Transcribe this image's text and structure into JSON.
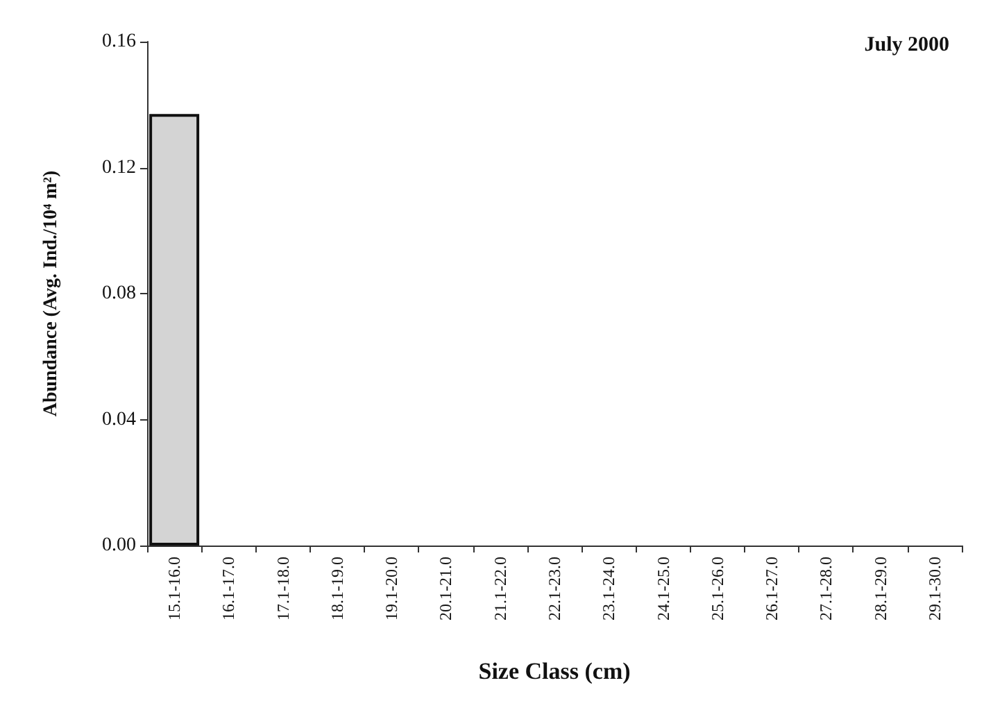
{
  "chart_data": {
    "type": "bar",
    "title": "July 2000",
    "xlabel": "Size Class (cm)",
    "ylabel": "Abundance (Avg. Ind./10⁴ m²)",
    "categories": [
      "15.1-16.0",
      "16.1-17.0",
      "17.1-18.0",
      "18.1-19.0",
      "19.1-20.0",
      "20.1-21.0",
      "21.1-22.0",
      "22.1-23.0",
      "23.1-24.0",
      "24.1-25.0",
      "25.1-26.0",
      "26.1-27.0",
      "27.1-28.0",
      "28.1-29.0",
      "29.1-30.0"
    ],
    "values": [
      0.137,
      0,
      0,
      0,
      0,
      0,
      0,
      0,
      0,
      0,
      0,
      0,
      0,
      0,
      0
    ],
    "color": "#d4d4d4",
    "ylim": [
      0,
      0.16
    ],
    "yticks": [
      {
        "value": 0,
        "label": "0.00"
      },
      {
        "value": 0.04,
        "label": "0.04"
      },
      {
        "value": 0.08,
        "label": "0.08"
      },
      {
        "value": 0.12,
        "label": "0.12"
      },
      {
        "value": 0.16,
        "label": "0.16"
      }
    ],
    "grid": false
  }
}
